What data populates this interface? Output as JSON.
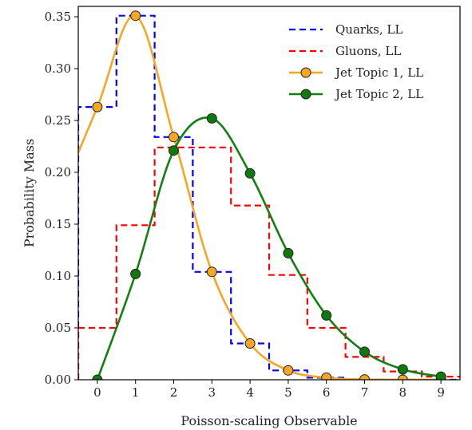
{
  "chart_data": {
    "type": "line",
    "title": "",
    "xlabel": "Poisson-scaling Observable",
    "ylabel": "Probability Mass",
    "xlim": [
      -0.5,
      9.5
    ],
    "ylim": [
      0.0,
      0.36
    ],
    "xticks": [
      "0",
      "1",
      "2",
      "3",
      "4",
      "5",
      "6",
      "7",
      "8",
      "9"
    ],
    "yticks": [
      "0.00",
      "0.05",
      "0.10",
      "0.15",
      "0.20",
      "0.25",
      "0.30",
      "0.35"
    ],
    "grid": false,
    "legend_position": "top-right",
    "x": [
      0,
      1,
      2,
      3,
      4,
      5,
      6,
      7,
      8,
      9
    ],
    "series": [
      {
        "name": "Quarks, LL",
        "style": "dashed-step",
        "color": "#0000ff",
        "values": [
          0.263,
          0.351,
          0.234,
          0.104,
          0.035,
          0.009,
          0.002,
          0.0003,
          4e-05,
          5e-06
        ]
      },
      {
        "name": "Gluons, LL",
        "style": "dashed-step",
        "color": "#ff0000",
        "values": [
          0.05,
          0.149,
          0.224,
          0.224,
          0.168,
          0.101,
          0.05,
          0.022,
          0.008,
          0.003
        ]
      },
      {
        "name": "Jet Topic 1, LL",
        "style": "line-marker",
        "color": "#f5a623",
        "marker_face": "#f5a623",
        "values": [
          0.263,
          0.351,
          0.234,
          0.104,
          0.035,
          0.009,
          0.002,
          0.0003,
          4e-05,
          5e-06
        ]
      },
      {
        "name": "Jet Topic 2, LL",
        "style": "line-marker",
        "color": "#118011",
        "marker_face": "#0e7a0e",
        "values": [
          0.0,
          0.102,
          0.221,
          0.252,
          0.199,
          0.122,
          0.062,
          0.027,
          0.01,
          0.003
        ]
      }
    ]
  }
}
